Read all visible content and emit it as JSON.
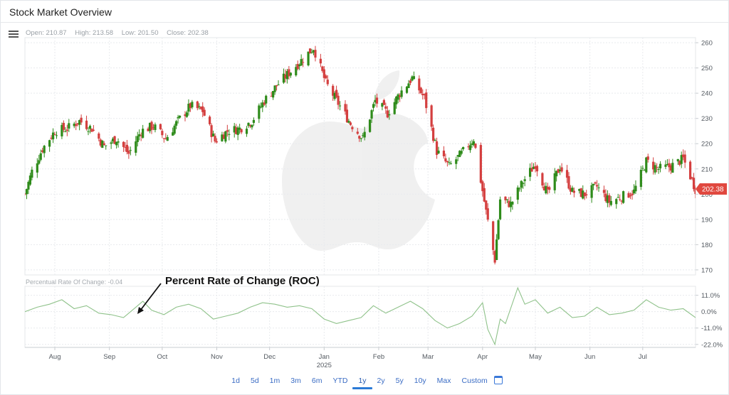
{
  "window": {
    "title": "Stock Market Overview"
  },
  "ohlc": {
    "open": "Open: 210.87",
    "high": "High: 213.58",
    "low": "Low: 201.50",
    "close": "Close: 202.38"
  },
  "roc_label": "Percentual Rate Of Change: -0.04",
  "annotation": "Percent Rate of Change (ROC)",
  "last_price": "202.38",
  "colors": {
    "up": "#2e8b1a",
    "down": "#d43f3f",
    "roc_line": "#8fc28a",
    "price_badge": "#e0483f",
    "accent": "#2a7ad6"
  },
  "icons": {
    "menu": "hamburger-menu-icon",
    "calendar": "calendar-icon",
    "watermark": "apple-logo"
  },
  "range_buttons": [
    "1d",
    "5d",
    "1m",
    "3m",
    "6m",
    "YTD",
    "1y",
    "2y",
    "5y",
    "10y",
    "Max",
    "Custom"
  ],
  "active_range": "1y",
  "chart_data": [
    {
      "type": "candlestick",
      "title": "",
      "x_range": [
        "2024-07-15",
        "2025-07-31"
      ],
      "ylim": [
        168,
        262
      ],
      "y_ticks": [
        "170",
        "180",
        "190",
        "200",
        "210",
        "220",
        "230",
        "240",
        "250",
        "260"
      ],
      "x_ticks": [
        {
          "label": "Aug",
          "date": "2024-08-01"
        },
        {
          "label": "Sep",
          "date": "2024-09-01"
        },
        {
          "label": "Oct",
          "date": "2024-10-01"
        },
        {
          "label": "Nov",
          "date": "2024-11-01"
        },
        {
          "label": "Dec",
          "date": "2024-12-01"
        },
        {
          "label": "Jan",
          "date": "2025-01-01"
        },
        {
          "label": "Feb",
          "date": "2025-02-01"
        },
        {
          "label": "Mar",
          "date": "2025-03-01"
        },
        {
          "label": "Apr",
          "date": "2025-04-01"
        },
        {
          "label": "May",
          "date": "2025-05-01"
        },
        {
          "label": "Jun",
          "date": "2025-06-01"
        },
        {
          "label": "Jul",
          "date": "2025-07-01"
        }
      ],
      "year_label": "2025",
      "grid": true,
      "close_path": [
        [
          "2024-07-15",
          200
        ],
        [
          "2024-07-19",
          209
        ],
        [
          "2024-07-25",
          218
        ],
        [
          "2024-08-01",
          225
        ],
        [
          "2024-08-08",
          226
        ],
        [
          "2024-08-15",
          229
        ],
        [
          "2024-08-22",
          226
        ],
        [
          "2024-08-29",
          219
        ],
        [
          "2024-09-05",
          222
        ],
        [
          "2024-09-12",
          216
        ],
        [
          "2024-09-19",
          225
        ],
        [
          "2024-09-26",
          227
        ],
        [
          "2024-10-03",
          222
        ],
        [
          "2024-10-10",
          229
        ],
        [
          "2024-10-17",
          235
        ],
        [
          "2024-10-24",
          233
        ],
        [
          "2024-10-31",
          221
        ],
        [
          "2024-11-07",
          225
        ],
        [
          "2024-11-14",
          226
        ],
        [
          "2024-11-21",
          229
        ],
        [
          "2024-11-28",
          237
        ],
        [
          "2024-12-05",
          243
        ],
        [
          "2024-12-12",
          248
        ],
        [
          "2024-12-19",
          253
        ],
        [
          "2024-12-26",
          258
        ],
        [
          "2025-01-02",
          244
        ],
        [
          "2025-01-09",
          236
        ],
        [
          "2025-01-16",
          228
        ],
        [
          "2025-01-23",
          222
        ],
        [
          "2025-01-30",
          237
        ],
        [
          "2025-02-06",
          232
        ],
        [
          "2025-02-13",
          240
        ],
        [
          "2025-02-20",
          246
        ],
        [
          "2025-02-27",
          238
        ],
        [
          "2025-03-06",
          217
        ],
        [
          "2025-03-13",
          211
        ],
        [
          "2025-03-20",
          216
        ],
        [
          "2025-03-27",
          222
        ],
        [
          "2025-04-03",
          193
        ],
        [
          "2025-04-08",
          174
        ],
        [
          "2025-04-11",
          198
        ],
        [
          "2025-04-17",
          196
        ],
        [
          "2025-04-24",
          205
        ],
        [
          "2025-05-01",
          212
        ],
        [
          "2025-05-08",
          200
        ],
        [
          "2025-05-15",
          211
        ],
        [
          "2025-05-22",
          201
        ],
        [
          "2025-05-29",
          200
        ],
        [
          "2025-06-05",
          203
        ],
        [
          "2025-06-12",
          197
        ],
        [
          "2025-06-19",
          199
        ],
        [
          "2025-06-26",
          201
        ],
        [
          "2025-07-03",
          213
        ],
        [
          "2025-07-10",
          210
        ],
        [
          "2025-07-17",
          211
        ],
        [
          "2025-07-24",
          214
        ],
        [
          "2025-07-31",
          202
        ]
      ]
    },
    {
      "type": "line",
      "title": "",
      "ylabel": "",
      "ylim": [
        -24,
        17
      ],
      "y_ticks": [
        {
          "label": "11.0%",
          "value": 11
        },
        {
          "label": "0.0%",
          "value": 0
        },
        {
          "label": "-11.0%",
          "value": -11
        },
        {
          "label": "-22.0%",
          "value": -22
        }
      ],
      "grid": true,
      "points": [
        [
          "2024-07-15",
          0
        ],
        [
          "2024-07-22",
          3
        ],
        [
          "2024-07-29",
          5
        ],
        [
          "2024-08-05",
          8
        ],
        [
          "2024-08-12",
          2
        ],
        [
          "2024-08-19",
          4
        ],
        [
          "2024-08-26",
          -1
        ],
        [
          "2024-09-02",
          -2
        ],
        [
          "2024-09-09",
          -4
        ],
        [
          "2024-09-16",
          3
        ],
        [
          "2024-09-20",
          7
        ],
        [
          "2024-09-25",
          1
        ],
        [
          "2024-10-02",
          -2
        ],
        [
          "2024-10-09",
          3
        ],
        [
          "2024-10-16",
          5
        ],
        [
          "2024-10-23",
          2
        ],
        [
          "2024-10-30",
          -5
        ],
        [
          "2024-11-06",
          -3
        ],
        [
          "2024-11-13",
          -1
        ],
        [
          "2024-11-20",
          3
        ],
        [
          "2024-11-27",
          6
        ],
        [
          "2024-12-04",
          5
        ],
        [
          "2024-12-11",
          3
        ],
        [
          "2024-12-18",
          4
        ],
        [
          "2024-12-25",
          2
        ],
        [
          "2025-01-01",
          -5
        ],
        [
          "2025-01-08",
          -8
        ],
        [
          "2025-01-15",
          -6
        ],
        [
          "2025-01-22",
          -4
        ],
        [
          "2025-01-29",
          4
        ],
        [
          "2025-02-05",
          -1
        ],
        [
          "2025-02-12",
          3
        ],
        [
          "2025-02-19",
          7
        ],
        [
          "2025-02-26",
          2
        ],
        [
          "2025-03-05",
          -6
        ],
        [
          "2025-03-12",
          -11
        ],
        [
          "2025-03-19",
          -8
        ],
        [
          "2025-03-26",
          -3
        ],
        [
          "2025-04-01",
          6
        ],
        [
          "2025-04-04",
          -12
        ],
        [
          "2025-04-08",
          -22
        ],
        [
          "2025-04-11",
          -5
        ],
        [
          "2025-04-14",
          -8
        ],
        [
          "2025-04-21",
          16
        ],
        [
          "2025-04-25",
          5
        ],
        [
          "2025-05-01",
          8
        ],
        [
          "2025-05-08",
          -1
        ],
        [
          "2025-05-15",
          3
        ],
        [
          "2025-05-22",
          -4
        ],
        [
          "2025-05-29",
          -3
        ],
        [
          "2025-06-05",
          3
        ],
        [
          "2025-06-12",
          -2
        ],
        [
          "2025-06-19",
          -1
        ],
        [
          "2025-06-26",
          1
        ],
        [
          "2025-07-03",
          8
        ],
        [
          "2025-07-10",
          3
        ],
        [
          "2025-07-17",
          1
        ],
        [
          "2025-07-24",
          2
        ],
        [
          "2025-07-31",
          -4
        ]
      ]
    }
  ]
}
